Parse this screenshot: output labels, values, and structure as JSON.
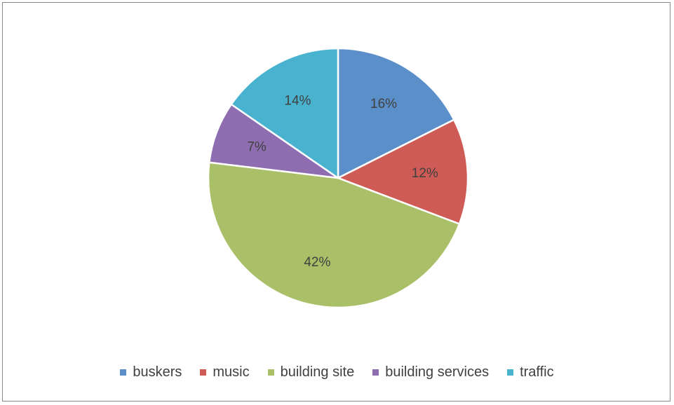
{
  "chart_data": {
    "type": "pie",
    "title": "",
    "slices": [
      {
        "label": "buskers",
        "value": 16,
        "display": "16%",
        "color": "#5B8FC9"
      },
      {
        "label": "music",
        "value": 12,
        "display": "12%",
        "color": "#CF5B57"
      },
      {
        "label": "building site",
        "value": 42,
        "display": "42%",
        "color": "#A9C068"
      },
      {
        "label": "building services",
        "value": 7,
        "display": "7%",
        "color": "#8E6DB0"
      },
      {
        "label": "traffic",
        "value": 14,
        "display": "14%",
        "color": "#49B3CF"
      }
    ],
    "legend_position": "bottom",
    "data_labels": true
  }
}
